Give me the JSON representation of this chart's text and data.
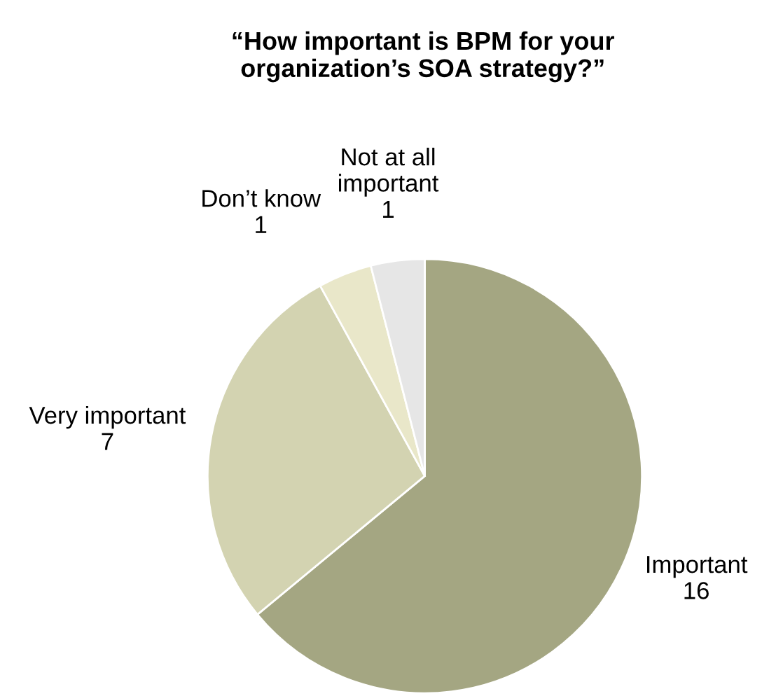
{
  "chart_data": {
    "type": "pie",
    "title": "“How important is BPM for your\norganization’s SOA strategy?”",
    "categories": [
      "Important",
      "Very important",
      "Don’t know",
      "Not at all\nimportant"
    ],
    "values": [
      16,
      7,
      1,
      1
    ],
    "colors": [
      "#a4a682",
      "#d3d3b1",
      "#e9e7c9",
      "#e6e6e6"
    ],
    "data_labels": true,
    "legend": false
  }
}
